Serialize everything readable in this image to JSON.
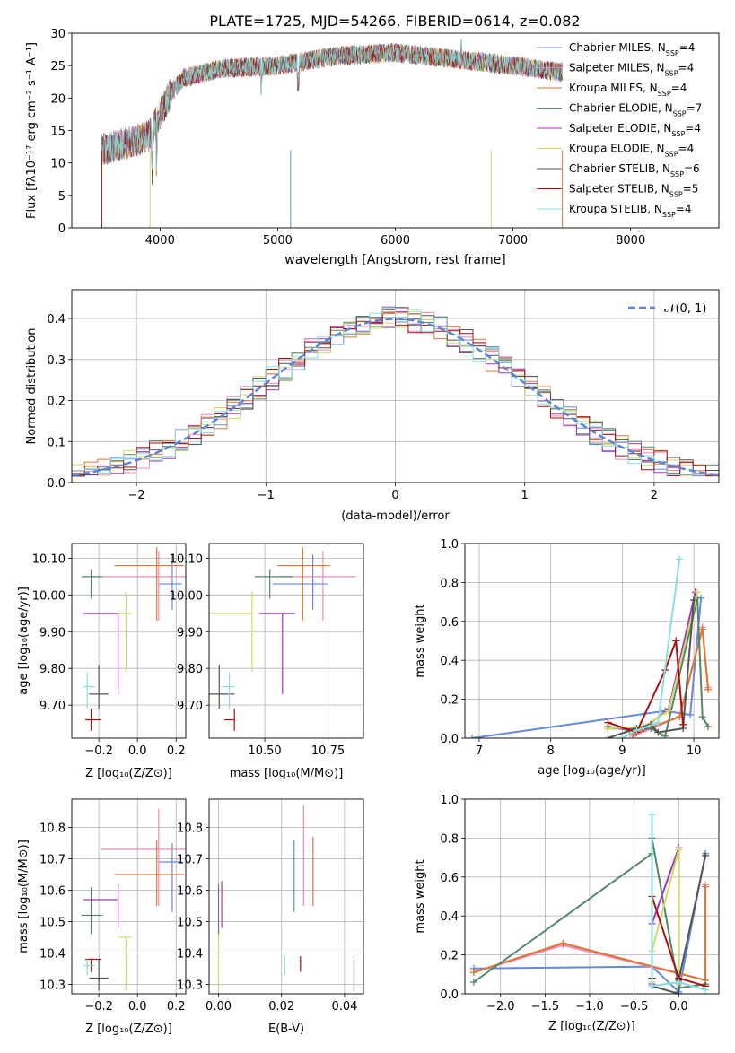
{
  "figure": {
    "panel1_title": "PLATE=1725, MJD=54266, FIBERID=0614, z=0.082",
    "panel1_xlabel": "wavelength [Angstrom, rest frame]",
    "panel1_ylabel": "Flux [fλ10⁻¹⁷ erg cm⁻² s⁻¹ A⁻¹]",
    "panel2_xlabel": "(data-model)/error",
    "panel2_ylabel": "Normed distribution",
    "panel2_legend": "𝒩(0, 1)",
    "age_ylabel": "age  [log₁₀(age/yr)]",
    "mass_ylabel": "mass [log₁₀(M/M⊙)]",
    "z_xlabel": "Z [log₁₀(Z/Z⊙)]",
    "mass_xlabel": "mass [log₁₀(M/M⊙)]",
    "ebv_xlabel": "E(B-V)",
    "mw_ylabel": "mass weight",
    "age_xlabel": "age  [log₁₀(age/yr)]"
  },
  "models": [
    {
      "name": "Chabrier MILES, N_SSP=4",
      "color": "#6688dd",
      "Z": 0.18,
      "Z_err": [
        0.07,
        0.05
      ],
      "age": 10.03,
      "age_err": [
        0.07,
        0.08
      ],
      "mass": 10.69,
      "mass_err": [
        0.16,
        0.06
      ],
      "ebv": 0.024
    },
    {
      "name": "Salpeter MILES, N_SSP=4",
      "color": "#ee88bb",
      "Z": 0.11,
      "Z_err": [
        0.3,
        0.14
      ],
      "age": 10.05,
      "age_err": [
        0.12,
        0.07
      ],
      "mass": 10.73,
      "mass_err": [
        0.18,
        0.13
      ],
      "ebv": 0.027
    },
    {
      "name": "Kroupa MILES, N_SSP=4",
      "color": "#dd7733",
      "Z": 0.1,
      "Z_err": [
        0.22,
        0.14
      ],
      "age": 10.08,
      "age_err": [
        0.15,
        0.05
      ],
      "mass": 10.65,
      "mass_err": [
        0.1,
        0.11
      ],
      "ebv": 0.03
    },
    {
      "name": "Chabrier ELODIE, N_SSP=7",
      "color": "#558866",
      "Z": -0.24,
      "Z_err": [
        0.05,
        0.06
      ],
      "age": 10.05,
      "age_err": [
        0.06,
        0.02
      ],
      "mass": 10.52,
      "mass_err": [
        0.06,
        0.09
      ],
      "ebv": 0.0
    },
    {
      "name": "Salpeter ELODIE, N_SSP=4",
      "color": "#aa33bb",
      "Z": -0.1,
      "Z_err": [
        0.18,
        0.0
      ],
      "age": 9.95,
      "age_err": [
        0.22,
        0.0
      ],
      "mass": 10.57,
      "mass_err": [
        0.09,
        0.05
      ],
      "ebv": 0.001
    },
    {
      "name": "Kroupa ELODIE, N_SSP=4",
      "color": "#ccdd66",
      "Z": -0.06,
      "Z_err": [
        0.04,
        0.03
      ],
      "age": 9.95,
      "age_err": [
        0.16,
        0.06
      ],
      "mass": 10.45,
      "mass_err": [
        0.17,
        0.0
      ],
      "ebv": 0.0
    },
    {
      "name": "Chabrier STELIB, N_SSP=6",
      "color": "#555555",
      "Z": -0.2,
      "Z_err": [
        0.05,
        0.05
      ],
      "age": 9.73,
      "age_err": [
        0.04,
        0.08
      ],
      "mass": 10.32,
      "mass_err": [
        0.04,
        0.06
      ],
      "ebv": 0.043
    },
    {
      "name": "Salpeter STELIB, N_SSP=5",
      "color": "#aa1111",
      "Z": -0.24,
      "Z_err": [
        0.03,
        0.05
      ],
      "age": 9.66,
      "age_err": [
        0.03,
        0.03
      ],
      "mass": 10.38,
      "mass_err": [
        0.04,
        0.0
      ],
      "ebv": 0.026
    },
    {
      "name": "Kroupa STELIB, N_SSP=4",
      "color": "#88dddd",
      "Z": -0.26,
      "Z_err": [
        0.02,
        0.04
      ],
      "age": 9.75,
      "age_err": [
        0.06,
        0.04
      ],
      "mass": 10.36,
      "mass_err": [
        0.03,
        0.02
      ],
      "ebv": 0.021
    }
  ],
  "chart_data": [
    {
      "type": "line",
      "title": "PLATE=1725, MJD=54266, FIBERID=0614, z=0.082",
      "xlabel": "wavelength [Angstrom, rest frame]",
      "ylabel": "Flux [fλ10⁻¹⁷ erg cm⁻² s⁻¹ A⁻¹]",
      "xlim": [
        3250,
        8750
      ],
      "ylim": [
        0,
        30
      ],
      "xticks": [
        4000,
        5000,
        6000,
        7000,
        8000
      ],
      "yticks": [
        0,
        5,
        10,
        15,
        20,
        25,
        30
      ],
      "continuum": {
        "x": [
          3500,
          3700,
          3900,
          4000,
          4100,
          4200,
          4500,
          5000,
          5500,
          6000,
          6500,
          7000,
          7400
        ],
        "y": [
          12,
          13,
          14,
          17.5,
          21,
          23,
          24.5,
          25,
          26.5,
          27,
          26,
          25,
          24
        ]
      },
      "legend_position": "right"
    },
    {
      "type": "line",
      "subtype": "step histogram",
      "xlabel": "(data-model)/error",
      "ylabel": "Normed distribution",
      "xlim": [
        -2.5,
        2.5
      ],
      "ylim": [
        0,
        0.47
      ],
      "xticks": [
        -2,
        -1,
        0,
        1,
        2
      ],
      "yticks": [
        0.0,
        0.1,
        0.2,
        0.3,
        0.4
      ],
      "bin_width": 0.1,
      "reference_curve": "N(0,1)",
      "grid": true
    },
    {
      "type": "scatter",
      "xlabel": "Z [log₁₀(Z/Z⊙)]",
      "ylabel": "age  [log₁₀(age/yr)]",
      "xlim": [
        -0.34,
        0.25
      ],
      "ylim": [
        9.61,
        10.14
      ],
      "xticks": [
        -0.2,
        0.0,
        0.2
      ],
      "yticks": [
        9.7,
        9.8,
        9.9,
        10.0,
        10.1
      ]
    },
    {
      "type": "scatter",
      "xlabel": "mass [log₁₀(M/M⊙)]",
      "xlim": [
        10.28,
        10.89
      ],
      "ylim": [
        9.61,
        10.14
      ],
      "xticks": [
        10.5,
        10.75
      ],
      "yticks": [
        9.7,
        9.8,
        9.9,
        10.0,
        10.1
      ]
    },
    {
      "type": "line",
      "xlabel": "age  [log₁₀(age/yr)]",
      "ylabel": "mass weight",
      "xlim": [
        6.8,
        10.35
      ],
      "ylim": [
        0,
        1
      ],
      "xticks": [
        7,
        8,
        9,
        10
      ],
      "yticks": [
        0.0,
        0.2,
        0.4,
        0.6,
        0.8,
        1.0
      ],
      "series": [
        {
          "name": "Chabrier MILES, N_SSP=4",
          "color": "#6688dd",
          "x": [
            6.9,
            9.6,
            9.95,
            10.1
          ],
          "y": [
            0.0,
            0.14,
            0.12,
            0.72
          ]
        },
        {
          "name": "Salpeter MILES, N_SSP=4",
          "color": "#ee88bb",
          "x": [
            9.15,
            9.8,
            10.12,
            10.2
          ],
          "y": [
            0.01,
            0.11,
            0.57,
            0.26
          ]
        },
        {
          "name": "Kroupa MILES, N_SSP=4",
          "color": "#dd7733",
          "x": [
            9.15,
            9.8,
            10.12,
            10.2
          ],
          "y": [
            0.02,
            0.11,
            0.56,
            0.25
          ]
        },
        {
          "name": "Chabrier ELODIE, N_SSP=7",
          "color": "#558866",
          "x": [
            8.8,
            9.1,
            9.4,
            9.6,
            10.05,
            10.12,
            10.2
          ],
          "y": [
            0.06,
            0.04,
            0.05,
            0.01,
            0.72,
            0.11,
            0.06
          ]
        },
        {
          "name": "Salpeter ELODIE, N_SSP=4",
          "color": "#aa33bb",
          "x": [
            8.8,
            9.3,
            9.65,
            10.02
          ],
          "y": [
            0.05,
            0.05,
            0.15,
            0.75
          ]
        },
        {
          "name": "Kroupa ELODIE, N_SSP=4",
          "color": "#ccdd66",
          "x": [
            8.8,
            9.3,
            9.65,
            10.05
          ],
          "y": [
            0.05,
            0.06,
            0.14,
            0.75
          ]
        },
        {
          "name": "Chabrier STELIB, N_SSP=6",
          "color": "#555555",
          "x": [
            8.8,
            9.2,
            9.4,
            9.5,
            9.85,
            10.0
          ],
          "y": [
            0.0,
            0.05,
            0.07,
            0.03,
            0.05,
            0.71
          ]
        },
        {
          "name": "Salpeter STELIB, N_SSP=5",
          "color": "#aa1111",
          "x": [
            8.8,
            9.2,
            9.6,
            9.75,
            9.85
          ],
          "y": [
            0.08,
            0.03,
            0.35,
            0.5,
            0.07
          ]
        },
        {
          "name": "Kroupa STELIB, N_SSP=4",
          "color": "#88dddd",
          "x": [
            9.0,
            9.2,
            9.5,
            9.8
          ],
          "y": [
            0.0,
            0.04,
            0.08,
            0.92
          ]
        }
      ],
      "grid": true
    },
    {
      "type": "line",
      "xlabel": "Z [log₁₀(Z/Z⊙)]",
      "ylabel": "mass weight",
      "xlim": [
        -2.4,
        0.45
      ],
      "ylim": [
        0,
        1
      ],
      "xticks": [
        -2.0,
        -1.5,
        -1.0,
        -0.5,
        0.0
      ],
      "yticks": [
        0.0,
        0.2,
        0.4,
        0.6,
        0.8,
        1.0
      ],
      "series": [
        {
          "name": "Chabrier MILES, N_SSP=4",
          "color": "#6688dd",
          "x": [
            -2.3,
            -0.3,
            0.0,
            0.3
          ],
          "y": [
            0.13,
            0.14,
            0.01,
            0.72
          ]
        },
        {
          "name": "Salpeter MILES, N_SSP=4",
          "color": "#ee88bb",
          "x": [
            -2.3,
            -1.3,
            0.3,
            0.3
          ],
          "y": [
            0.11,
            0.25,
            0.07,
            0.56
          ]
        },
        {
          "name": "Kroupa MILES, N_SSP=4",
          "color": "#dd7733",
          "x": [
            -2.3,
            -1.3,
            0.3,
            0.3
          ],
          "y": [
            0.11,
            0.26,
            0.07,
            0.55
          ]
        },
        {
          "name": "Chabrier ELODIE, N_SSP=7",
          "color": "#558866",
          "x": [
            -2.3,
            -0.3,
            -0.3,
            0.0,
            0.3
          ],
          "y": [
            0.06,
            0.72,
            0.8,
            0.03,
            0.05
          ]
        },
        {
          "name": "Salpeter ELODIE, N_SSP=4",
          "color": "#aa33bb",
          "x": [
            -0.3,
            -0.3,
            0.0,
            0.0
          ],
          "y": [
            0.05,
            0.36,
            0.75,
            0.08
          ]
        },
        {
          "name": "Kroupa ELODIE, N_SSP=4",
          "color": "#ccdd66",
          "x": [
            -0.3,
            -0.3,
            0.0,
            0.0
          ],
          "y": [
            0.06,
            0.22,
            0.74,
            0.05
          ]
        },
        {
          "name": "Chabrier STELIB, N_SSP=6",
          "color": "#555555",
          "x": [
            -0.3,
            0.0,
            0.0,
            0.3
          ],
          "y": [
            0.04,
            0.0,
            0.07,
            0.71
          ]
        },
        {
          "name": "Salpeter STELIB, N_SSP=5",
          "color": "#aa1111",
          "x": [
            -0.3,
            -0.3,
            0.0,
            0.3
          ],
          "y": [
            0.08,
            0.5,
            0.08,
            0.04
          ]
        },
        {
          "name": "Kroupa STELIB, N_SSP=4",
          "color": "#88dddd",
          "x": [
            -0.3,
            -0.3,
            0.0,
            0.3
          ],
          "y": [
            0.92,
            0.04,
            0.06,
            0.02
          ]
        }
      ],
      "grid": true
    },
    {
      "type": "scatter",
      "xlabel": "Z [log₁₀(Z/Z⊙)]",
      "ylabel": "mass [log₁₀(M/M⊙)]",
      "xlim": [
        -0.34,
        0.25
      ],
      "ylim": [
        10.27,
        10.89
      ],
      "xticks": [
        -0.2,
        0.0,
        0.2
      ],
      "yticks": [
        10.3,
        10.4,
        10.5,
        10.6,
        10.7,
        10.8
      ]
    },
    {
      "type": "scatter",
      "xlabel": "E(B-V)",
      "xlim": [
        -0.003,
        0.046
      ],
      "ylim": [
        10.27,
        10.89
      ],
      "xticks": [
        0.0,
        0.02,
        0.04
      ],
      "yticks": [
        10.3,
        10.4,
        10.5,
        10.6,
        10.7,
        10.8
      ]
    }
  ]
}
